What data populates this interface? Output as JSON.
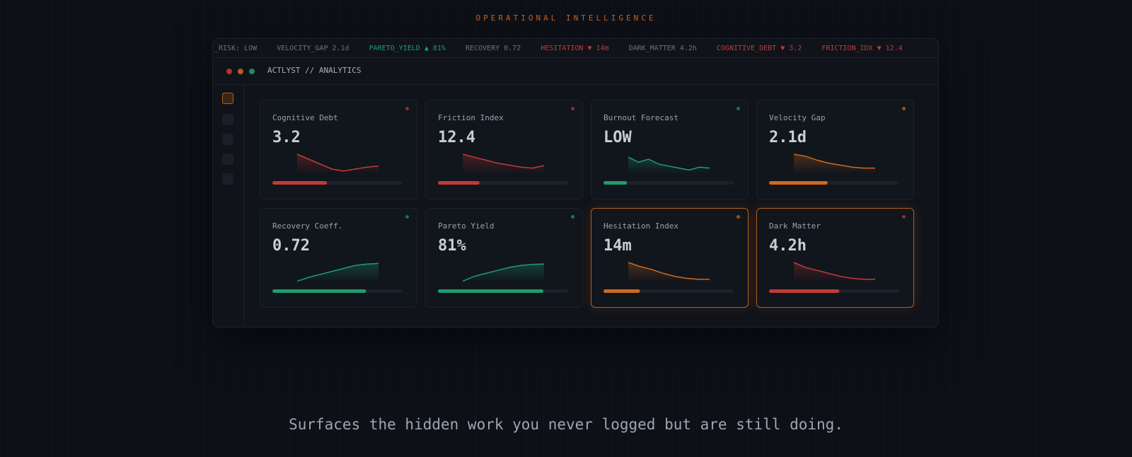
{
  "header": {
    "eyebrow": "OPERATIONAL INTELLIGENCE"
  },
  "ticker": [
    {
      "text": "_RISK: LOW",
      "color": "#6b7380"
    },
    {
      "text": "VELOCITY_GAP 2.1d",
      "color": "#6b7380"
    },
    {
      "text": "PARETO_YIELD ▲ 81%",
      "color": "#1f9d6e"
    },
    {
      "text": "RECOVERY 0.72",
      "color": "#6b7380"
    },
    {
      "text": "HESITATION ▼ 14m",
      "color": "#c23b35"
    },
    {
      "text": "DARK_MATTER 4.2h",
      "color": "#6b7380"
    },
    {
      "text": "COGNITIVE_DEBT ▼ 3.2",
      "color": "#c23b35"
    },
    {
      "text": "FRICTION_IDX ▼ 12.4",
      "color": "#c23b35"
    }
  ],
  "window": {
    "title": "ACTLYST // ANALYTICS"
  },
  "cards": [
    {
      "label": "Cognitive Debt",
      "value": "3.2",
      "color": "#c23b35",
      "progress": 42,
      "spark": [
        100,
        75,
        50,
        25,
        15,
        25,
        35,
        40
      ],
      "highlight": false
    },
    {
      "label": "Friction Index",
      "value": "12.4",
      "color": "#c23b35",
      "progress": 32,
      "spark": [
        100,
        85,
        70,
        55,
        45,
        35,
        30,
        42
      ],
      "highlight": false
    },
    {
      "label": "Burnout Forecast",
      "value": "LOW",
      "color": "#1f9d6e",
      "progress": 18,
      "spark": [
        85,
        60,
        75,
        50,
        40,
        30,
        20,
        35,
        30
      ],
      "highlight": false
    },
    {
      "label": "Velocity Gap",
      "value": "2.1d",
      "color": "#d0691c",
      "progress": 45,
      "spark": [
        100,
        90,
        70,
        55,
        45,
        35,
        30,
        30
      ],
      "highlight": false
    },
    {
      "label": "Recovery Coeff.",
      "value": "0.72",
      "color": "#1f9d6e",
      "progress": 72,
      "spark": [
        5,
        25,
        40,
        55,
        70,
        85,
        92,
        95
      ],
      "highlight": false
    },
    {
      "label": "Pareto Yield",
      "value": "81%",
      "color": "#1f9d6e",
      "progress": 81,
      "spark": [
        5,
        30,
        45,
        60,
        75,
        85,
        90,
        92
      ],
      "highlight": false
    },
    {
      "label": "Hesitation Index",
      "value": "14m",
      "color": "#d0691c",
      "progress": 28,
      "spark": [
        100,
        80,
        65,
        45,
        30,
        20,
        15,
        15
      ],
      "highlight": true
    },
    {
      "label": "Dark Matter",
      "value": "4.2h",
      "color": "#c23b35",
      "progress": 54,
      "spark": [
        100,
        75,
        60,
        45,
        30,
        20,
        15,
        15
      ],
      "highlight": true
    }
  ],
  "caption": "Surfaces the hidden work you never logged but are still doing."
}
